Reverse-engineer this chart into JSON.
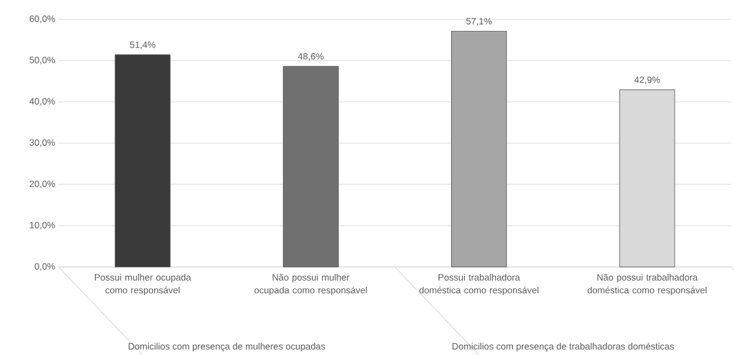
{
  "chart_data": {
    "type": "bar",
    "categories": [
      "Possui mulher ocupada como responsável",
      "Não possui mulher ocupada como responsável",
      "Possui trabalhadora doméstica como responsável",
      "Não possui trabalhadora doméstica como responsável"
    ],
    "values": [
      51.4,
      48.6,
      57.1,
      42.9
    ],
    "colors": [
      "#3a3a3a",
      "#707070",
      "#a6a6a6",
      "#d9d9d9"
    ],
    "value_labels": [
      "51,4%",
      "48,6%",
      "57,1%",
      "42,9%"
    ],
    "ylim": [
      0,
      60
    ],
    "yticks": [
      {
        "value": 0,
        "label": "0,0%"
      },
      {
        "value": 10,
        "label": "10,0%"
      },
      {
        "value": 20,
        "label": "20,0%"
      },
      {
        "value": 30,
        "label": "30,0%"
      },
      {
        "value": 40,
        "label": "40,0%"
      },
      {
        "value": 50,
        "label": "50,0%"
      },
      {
        "value": 60,
        "label": "60,0%"
      }
    ],
    "grid": "y",
    "annotations": [
      "Domicilios com presença de mulheres ocupadas",
      "Domicilios com presença de trabalhadoras domésticas"
    ]
  }
}
